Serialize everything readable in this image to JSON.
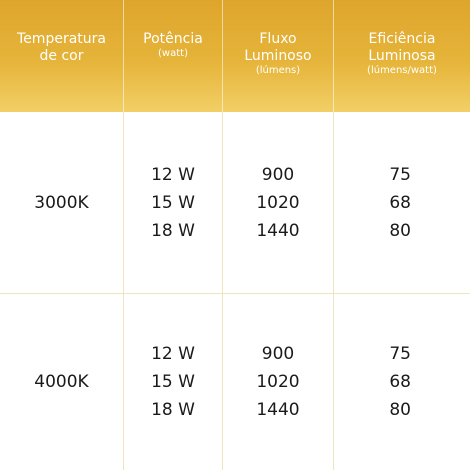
{
  "headers": {
    "temperature": [
      "Temperatura",
      "de cor"
    ],
    "power": {
      "label": "Potência",
      "unit": "(watt)"
    },
    "flux": {
      "label": [
        "Fluxo",
        "Luminoso"
      ],
      "unit": "(lúmens)"
    },
    "efficiency": {
      "label": [
        "Eficiência",
        "Luminosa"
      ],
      "unit": "(lúmens/watt)"
    }
  },
  "rows": [
    {
      "temperature": "3000K",
      "power": [
        "12 W",
        "15 W",
        "18 W"
      ],
      "flux": [
        "900",
        "1020",
        "1440"
      ],
      "efficiency": [
        "75",
        "68",
        "80"
      ]
    },
    {
      "temperature": "4000K",
      "power": [
        "12 W",
        "15 W",
        "18 W"
      ],
      "flux": [
        "900",
        "1020",
        "1440"
      ],
      "efficiency": [
        "75",
        "68",
        "80"
      ]
    }
  ],
  "colors": {
    "header_gradient_top": "#dea52c",
    "header_gradient_bottom": "#f2cf66",
    "divider": "#f1e3bd"
  }
}
